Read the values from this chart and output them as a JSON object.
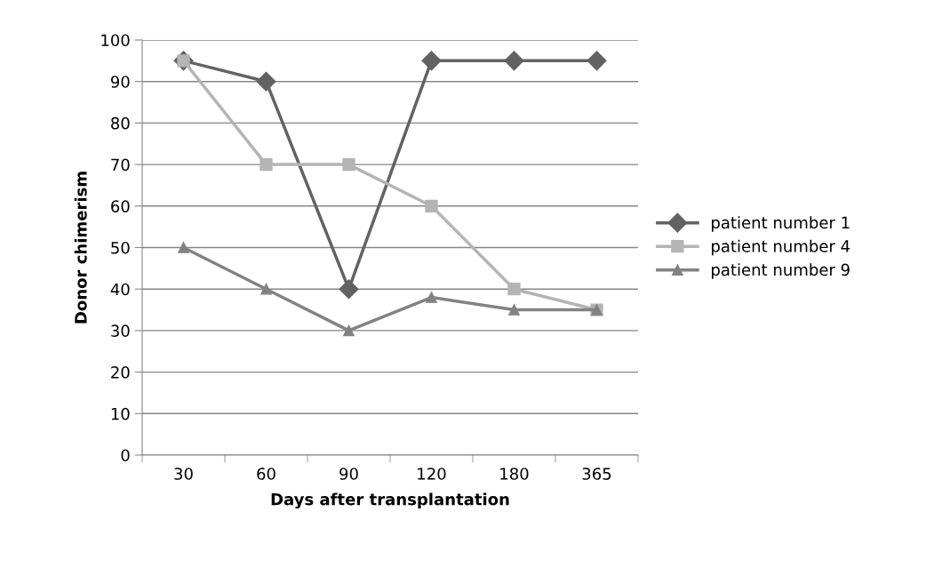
{
  "chart_data": {
    "type": "line",
    "xlabel": "Days after transplantation",
    "ylabel": "Donor chimerism",
    "categories": [
      "30",
      "60",
      "90",
      "120",
      "180",
      "365"
    ],
    "series": [
      {
        "name": "patient number 1",
        "color": "#626262",
        "marker": "diamond",
        "values": [
          95,
          90,
          40,
          95,
          95,
          95
        ]
      },
      {
        "name": "patient number 4",
        "color": "#b4b4b4",
        "marker": "square",
        "values": [
          95,
          70,
          70,
          60,
          40,
          35
        ]
      },
      {
        "name": "patient number 9",
        "color": "#828282",
        "marker": "triangle",
        "values": [
          50,
          40,
          30,
          38,
          35,
          35
        ]
      }
    ],
    "ylim": [
      0,
      100
    ],
    "yticks": [
      0,
      10,
      20,
      30,
      40,
      50,
      60,
      70,
      80,
      90,
      100
    ],
    "grid": "y",
    "legend": "right",
    "line_style": "solid"
  }
}
